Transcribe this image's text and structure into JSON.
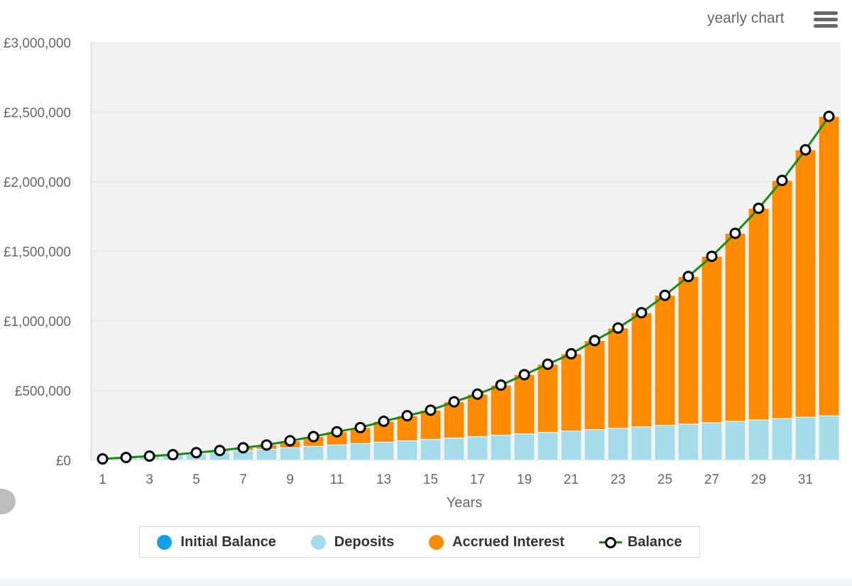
{
  "menu": {
    "title": "yearly chart",
    "icon": "hamburger-menu-icon"
  },
  "chart_data": {
    "type": "bar",
    "stacked": true,
    "xlabel": "Years",
    "ylabel": "",
    "ylim": [
      0,
      3000000
    ],
    "yticks": [
      0,
      500000,
      1000000,
      1500000,
      2000000,
      2500000,
      3000000
    ],
    "ytick_labels": [
      "£0",
      "£500,000",
      "£1,000,000",
      "£1,500,000",
      "£2,000,000",
      "£2,500,000",
      "£3,000,000"
    ],
    "categories": [
      1,
      2,
      3,
      4,
      5,
      6,
      7,
      8,
      9,
      10,
      11,
      12,
      13,
      14,
      15,
      16,
      17,
      18,
      19,
      20,
      21,
      22,
      23,
      24,
      25,
      26,
      27,
      28,
      29,
      30,
      31,
      32
    ],
    "xtick_labels": [
      "1",
      "3",
      "5",
      "7",
      "9",
      "11",
      "13",
      "15",
      "17",
      "19",
      "21",
      "23",
      "25",
      "27",
      "29",
      "31"
    ],
    "grid": true,
    "legend_position": "bottom",
    "series": [
      {
        "name": "Initial Balance",
        "type": "bar",
        "color": "#13a0e6",
        "values": [
          0,
          0,
          0,
          0,
          0,
          0,
          0,
          0,
          0,
          0,
          0,
          0,
          0,
          0,
          0,
          0,
          0,
          0,
          0,
          0,
          0,
          0,
          0,
          0,
          0,
          0,
          0,
          0,
          0,
          0,
          0,
          0
        ]
      },
      {
        "name": "Deposits",
        "type": "bar",
        "color": "#a6dcea",
        "values": [
          10000,
          20000,
          30000,
          40000,
          50000,
          60000,
          70000,
          80000,
          90000,
          100000,
          110000,
          120000,
          130000,
          140000,
          150000,
          160000,
          170000,
          180000,
          190000,
          200000,
          210000,
          220000,
          230000,
          240000,
          250000,
          260000,
          270000,
          280000,
          290000,
          300000,
          310000,
          320000
        ]
      },
      {
        "name": "Accrued Interest",
        "type": "bar",
        "color": "#ff8c00",
        "values": [
          0,
          0,
          0,
          0,
          5000,
          10000,
          20000,
          30000,
          50000,
          70000,
          95000,
          115000,
          150000,
          180000,
          210000,
          260000,
          305000,
          360000,
          425000,
          490000,
          555000,
          640000,
          720000,
          820000,
          935000,
          1060000,
          1195000,
          1350000,
          1520000,
          1710000,
          1920000,
          2150000
        ]
      },
      {
        "name": "Balance",
        "type": "line",
        "color": "#1a8a14",
        "values": [
          10000,
          20000,
          30000,
          40000,
          55000,
          70000,
          90000,
          110000,
          140000,
          170000,
          205000,
          235000,
          280000,
          320000,
          360000,
          420000,
          475000,
          540000,
          615000,
          690000,
          765000,
          860000,
          950000,
          1060000,
          1185000,
          1320000,
          1465000,
          1630000,
          1810000,
          2010000,
          2230000,
          2470000
        ]
      }
    ]
  }
}
